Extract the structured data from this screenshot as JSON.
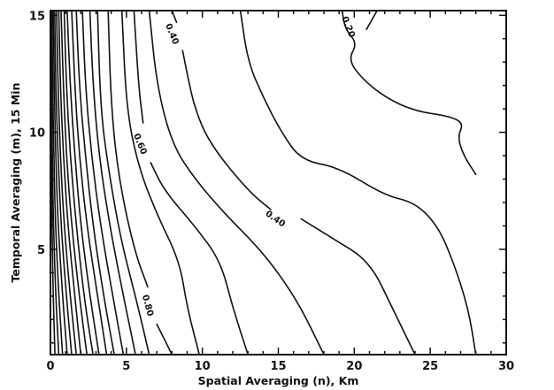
{
  "chart_data": {
    "type": "contour",
    "title": "",
    "xlabel": "Spatial Averaging (n), Km",
    "ylabel": "Temporal Averaging (m), 15 Min",
    "xlim": [
      0,
      30
    ],
    "ylim": [
      0.5,
      15.2
    ],
    "x_ticks": [
      "0",
      "5",
      "10",
      "15",
      "20",
      "25",
      "30"
    ],
    "x_tick_values": [
      0,
      5,
      10,
      15,
      20,
      25,
      30
    ],
    "y_ticks": [
      "5",
      "10",
      "15"
    ],
    "y_tick_values": [
      5,
      10,
      15
    ],
    "grid": false,
    "contour_labels": [
      {
        "text": "0.40",
        "x": 8.0,
        "y": 14.2,
        "angle": 68
      },
      {
        "text": "0.20",
        "x": 19.6,
        "y": 14.5,
        "angle": 68
      },
      {
        "text": "0.60",
        "x": 5.9,
        "y": 9.5,
        "angle": 68
      },
      {
        "text": "0.40",
        "x": 14.8,
        "y": 6.3,
        "angle": 35
      },
      {
        "text": "0.80",
        "x": 6.4,
        "y": 2.6,
        "angle": 75
      }
    ],
    "contours": [
      {
        "points": [
          [
            28,
            8.2
          ],
          [
            27.2,
            9
          ],
          [
            26.8,
            9.8
          ],
          [
            27.2,
            10.4
          ],
          [
            26.2,
            10.7
          ],
          [
            24,
            10.9
          ],
          [
            22,
            11.5
          ],
          [
            20.5,
            12.3
          ],
          [
            19.6,
            13.1
          ],
          [
            20.2,
            13.8
          ],
          [
            19.4,
            14.4
          ],
          [
            19.2,
            15.2
          ]
        ]
      },
      {
        "points": [
          [
            21.5,
            15.2
          ],
          [
            20.8,
            14.4
          ]
        ]
      },
      {
        "points": [
          [
            28,
            0.5
          ],
          [
            27.5,
            2.5
          ],
          [
            26.5,
            4.5
          ],
          [
            25.5,
            6
          ],
          [
            24,
            7
          ],
          [
            22,
            7.3
          ],
          [
            19,
            8.5
          ],
          [
            16.5,
            8.8
          ],
          [
            15.2,
            10
          ],
          [
            14,
            11.5
          ],
          [
            13,
            13
          ],
          [
            12.5,
            15.2
          ]
        ]
      },
      {
        "points": [
          [
            24,
            0.5
          ],
          [
            22.5,
            2.5
          ],
          [
            21,
            4.5
          ],
          [
            18.5,
            5.5
          ],
          [
            16.5,
            6.3
          ]
        ]
      },
      {
        "points": [
          [
            14.5,
            6.7
          ],
          [
            13,
            7.5
          ],
          [
            10.5,
            9.5
          ],
          [
            9.5,
            11
          ],
          [
            9,
            12.5
          ],
          [
            8.7,
            13.5
          ]
        ]
      },
      {
        "points": [
          [
            8.3,
            14.7
          ],
          [
            8,
            15.2
          ]
        ]
      },
      {
        "points": [
          [
            18,
            0.5
          ],
          [
            16.5,
            2.5
          ],
          [
            15,
            4
          ],
          [
            13.5,
            5.2
          ],
          [
            11.5,
            6.5
          ],
          [
            9.5,
            8
          ],
          [
            8,
            9.5
          ],
          [
            7,
            12
          ],
          [
            6.5,
            15.2
          ]
        ]
      },
      {
        "points": [
          [
            13,
            0.5
          ],
          [
            12,
            2.5
          ],
          [
            11.2,
            4.5
          ],
          [
            9.5,
            6
          ],
          [
            7.5,
            7.5
          ],
          [
            6.6,
            8.7
          ]
        ]
      },
      {
        "points": [
          [
            6.1,
            10.4
          ],
          [
            5.8,
            12
          ],
          [
            5.5,
            15.2
          ]
        ]
      },
      {
        "points": [
          [
            9.8,
            0.5
          ],
          [
            9,
            2.5
          ],
          [
            8.5,
            4.5
          ],
          [
            7,
            6.5
          ],
          [
            5.8,
            8.5
          ],
          [
            5,
            11
          ],
          [
            4.7,
            15.2
          ]
        ]
      },
      {
        "points": [
          [
            8,
            0.5
          ],
          [
            7,
            1.8
          ]
        ]
      },
      {
        "points": [
          [
            6.4,
            3.4
          ],
          [
            5.5,
            5
          ],
          [
            4.5,
            8
          ],
          [
            4,
            11
          ],
          [
            3.8,
            15.2
          ]
        ]
      },
      {
        "points": [
          [
            6.5,
            0.5
          ],
          [
            5.6,
            3
          ],
          [
            4.6,
            5.5
          ],
          [
            3.8,
            8.5
          ],
          [
            3.3,
            11
          ],
          [
            3.1,
            15.2
          ]
        ]
      },
      {
        "points": [
          [
            5.6,
            0.5
          ],
          [
            4.8,
            3
          ],
          [
            3.9,
            6
          ],
          [
            3.2,
            9
          ],
          [
            2.8,
            12
          ],
          [
            2.6,
            15.2
          ]
        ]
      },
      {
        "points": [
          [
            4.8,
            0.5
          ],
          [
            4.1,
            3
          ],
          [
            3.3,
            6
          ],
          [
            2.7,
            9
          ],
          [
            2.3,
            12
          ],
          [
            2.1,
            15.2
          ]
        ]
      },
      {
        "points": [
          [
            4.2,
            0.5
          ],
          [
            3.5,
            3
          ],
          [
            2.8,
            6
          ],
          [
            2.3,
            9
          ],
          [
            1.9,
            12
          ],
          [
            1.7,
            15.2
          ]
        ]
      },
      {
        "points": [
          [
            3.7,
            0.5
          ],
          [
            3.1,
            3
          ],
          [
            2.4,
            6
          ],
          [
            1.9,
            9
          ],
          [
            1.6,
            12
          ],
          [
            1.4,
            15.2
          ]
        ]
      },
      {
        "points": [
          [
            3.2,
            0.5
          ],
          [
            2.6,
            3
          ],
          [
            2,
            6
          ],
          [
            1.6,
            9
          ],
          [
            1.3,
            12
          ],
          [
            1.1,
            15.2
          ]
        ]
      },
      {
        "points": [
          [
            2.8,
            0.5
          ],
          [
            2.2,
            3
          ],
          [
            1.7,
            6
          ],
          [
            1.3,
            9
          ],
          [
            1.05,
            12
          ],
          [
            0.9,
            15.2
          ]
        ]
      },
      {
        "points": [
          [
            2.4,
            0.5
          ],
          [
            1.9,
            3
          ],
          [
            1.4,
            6
          ],
          [
            1.05,
            9
          ],
          [
            0.85,
            12
          ],
          [
            0.7,
            15.2
          ]
        ]
      },
      {
        "points": [
          [
            2,
            0.5
          ],
          [
            1.6,
            3
          ],
          [
            1.15,
            6
          ],
          [
            0.85,
            9
          ],
          [
            0.65,
            12
          ],
          [
            0.55,
            15.2
          ]
        ]
      },
      {
        "points": [
          [
            1.7,
            0.5
          ],
          [
            1.3,
            3
          ],
          [
            0.9,
            6
          ],
          [
            0.65,
            9
          ],
          [
            0.5,
            12
          ],
          [
            0.4,
            15.2
          ]
        ]
      },
      {
        "points": [
          [
            1.4,
            0.5
          ],
          [
            1.05,
            3
          ],
          [
            0.7,
            6
          ],
          [
            0.5,
            9
          ],
          [
            0.35,
            12
          ],
          [
            0.28,
            15.2
          ]
        ]
      },
      {
        "points": [
          [
            1.1,
            0.5
          ],
          [
            0.8,
            3
          ],
          [
            0.5,
            6
          ],
          [
            0.35,
            9
          ],
          [
            0.25,
            12
          ],
          [
            0.18,
            15.2
          ]
        ]
      },
      {
        "points": [
          [
            0.8,
            0.5
          ],
          [
            0.55,
            3
          ],
          [
            0.33,
            6
          ],
          [
            0.22,
            9
          ],
          [
            0.15,
            12
          ],
          [
            0.1,
            15.2
          ]
        ]
      },
      {
        "points": [
          [
            0.55,
            0.5
          ],
          [
            0.35,
            3
          ],
          [
            0.2,
            6
          ],
          [
            0.12,
            9
          ],
          [
            0.08,
            12
          ],
          [
            0.05,
            15.2
          ]
        ]
      },
      {
        "points": [
          [
            0.3,
            0.5
          ],
          [
            0.18,
            3
          ],
          [
            0.1,
            6
          ],
          [
            0.06,
            9
          ],
          [
            0.04,
            12
          ],
          [
            0.02,
            15.2
          ]
        ]
      }
    ]
  }
}
